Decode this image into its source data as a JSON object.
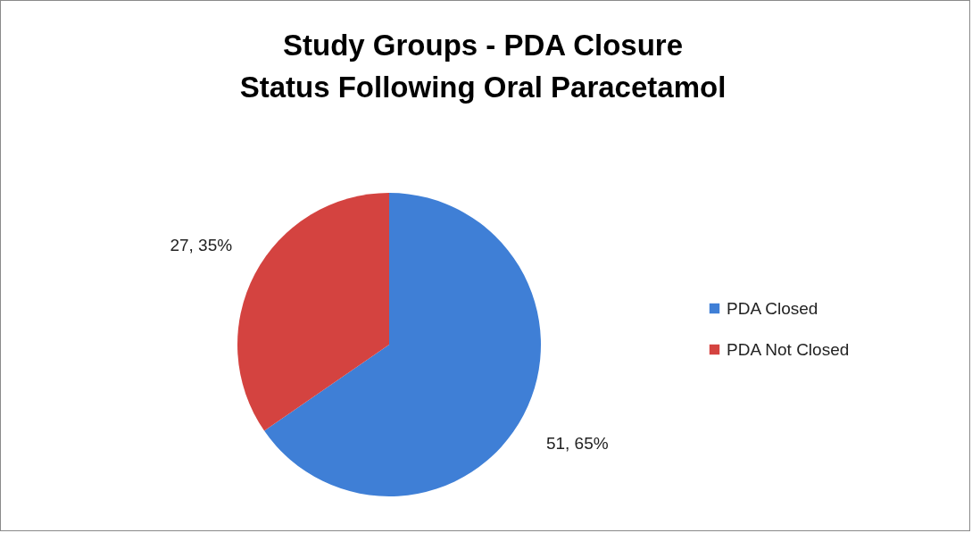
{
  "chart_data": {
    "type": "pie",
    "title": "Study Groups - PDA Closure Status Following Oral Paracetamol",
    "categories": [
      "PDA Closed",
      "PDA Not Closed"
    ],
    "values": [
      51,
      27
    ],
    "value_labels": [
      "51, 65%",
      "27, 35%"
    ],
    "colors": [
      "#3f7fd6",
      "#d44340"
    ],
    "legend": "right"
  }
}
